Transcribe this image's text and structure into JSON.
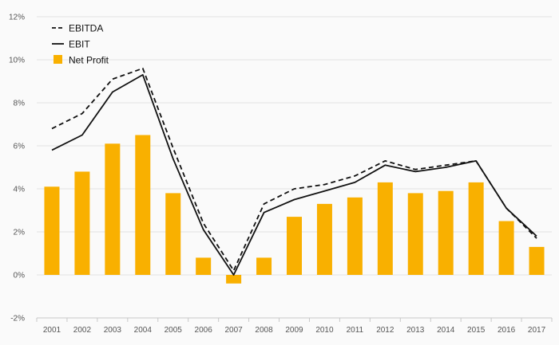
{
  "chart_data": {
    "type": "bar",
    "categories": [
      "2001",
      "2002",
      "2003",
      "2004",
      "2005",
      "2006",
      "2007",
      "2008",
      "2009",
      "2010",
      "2011",
      "2012",
      "2013",
      "2014",
      "2015",
      "2016",
      "2017"
    ],
    "series": [
      {
        "name": "EBITDA",
        "kind": "line",
        "style": "dashed",
        "values": [
          6.8,
          7.5,
          9.1,
          9.6,
          5.9,
          2.4,
          0.2,
          3.3,
          4.0,
          4.2,
          4.6,
          5.3,
          4.9,
          5.1,
          5.3,
          3.1,
          1.7
        ]
      },
      {
        "name": "EBIT",
        "kind": "line",
        "style": "solid",
        "values": [
          5.8,
          6.5,
          8.5,
          9.3,
          5.4,
          2.1,
          0.0,
          2.9,
          3.5,
          3.9,
          4.3,
          5.1,
          4.8,
          5.0,
          5.3,
          3.1,
          1.8
        ]
      },
      {
        "name": "Net Profit",
        "kind": "bar",
        "values": [
          4.1,
          4.8,
          6.1,
          6.5,
          3.8,
          0.8,
          -0.4,
          0.8,
          2.7,
          3.3,
          3.6,
          4.3,
          3.8,
          3.9,
          4.3,
          2.5,
          1.3
        ]
      }
    ],
    "yticks": [
      "-2%",
      "0%",
      "2%",
      "4%",
      "6%",
      "8%",
      "10%",
      "12%"
    ],
    "ylim": [
      -2,
      12
    ],
    "grid": true,
    "legend_position": "top-left",
    "colors": {
      "bar": "#f9b000",
      "lines": "#111111",
      "grid": "#e2e2e2",
      "axis": "#c8c8c8"
    }
  }
}
